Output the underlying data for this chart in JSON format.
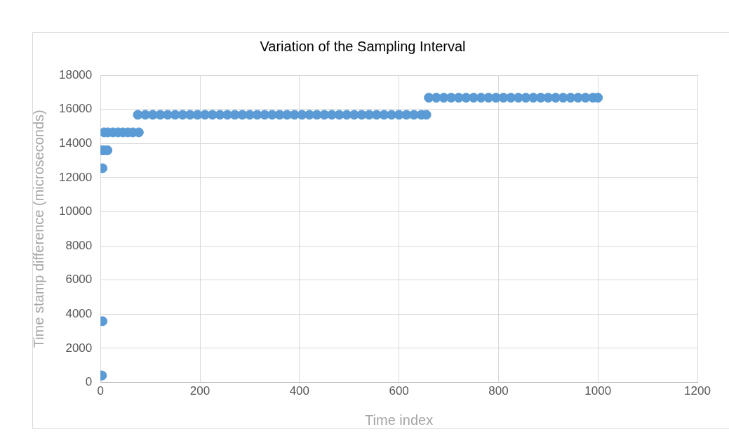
{
  "chart_data": {
    "type": "scatter",
    "title": "Variation of the Sampling Interval",
    "xlabel": "Time index",
    "ylabel": "Time stamp difference (microseconds)",
    "x": [
      1,
      3,
      4,
      4,
      1,
      7,
      14,
      7,
      15,
      25,
      35,
      45,
      55,
      65,
      77,
      75,
      90,
      105,
      120,
      135,
      150,
      165,
      180,
      195,
      210,
      225,
      240,
      255,
      270,
      285,
      300,
      315,
      330,
      345,
      360,
      375,
      390,
      405,
      420,
      435,
      450,
      465,
      480,
      495,
      510,
      525,
      540,
      555,
      570,
      585,
      600,
      615,
      630,
      645,
      655,
      660,
      675,
      690,
      705,
      720,
      735,
      750,
      765,
      780,
      795,
      810,
      825,
      840,
      855,
      870,
      885,
      900,
      915,
      930,
      945,
      960,
      975,
      990,
      1000
    ],
    "series": [
      {
        "color": "#5b9bd5",
        "values": [
          410,
          410,
          3590,
          12550,
          13600,
          13600,
          13600,
          14650,
          14650,
          14650,
          14650,
          14650,
          14650,
          14650,
          14650,
          15680,
          15680,
          15680,
          15680,
          15680,
          15680,
          15680,
          15680,
          15680,
          15680,
          15680,
          15680,
          15680,
          15680,
          15680,
          15680,
          15680,
          15680,
          15680,
          15680,
          15680,
          15680,
          15680,
          15680,
          15680,
          15680,
          15680,
          15680,
          15680,
          15680,
          15680,
          15680,
          15680,
          15680,
          15680,
          15680,
          15680,
          15680,
          15680,
          15680,
          16680,
          16680,
          16680,
          16680,
          16680,
          16680,
          16680,
          16680,
          16680,
          16680,
          16680,
          16680,
          16680,
          16680,
          16680,
          16680,
          16680,
          16680,
          16680,
          16680,
          16680,
          16680,
          16680,
          16680
        ]
      }
    ],
    "xlim": [
      0,
      1200
    ],
    "xticks": [
      0,
      200,
      400,
      600,
      800,
      1000,
      1200
    ],
    "ylim": [
      0,
      18000
    ],
    "yticks": [
      0,
      2000,
      4000,
      6000,
      8000,
      10000,
      12000,
      14000,
      16000,
      18000
    ],
    "grid": true,
    "legend": false,
    "marker": "circle"
  }
}
